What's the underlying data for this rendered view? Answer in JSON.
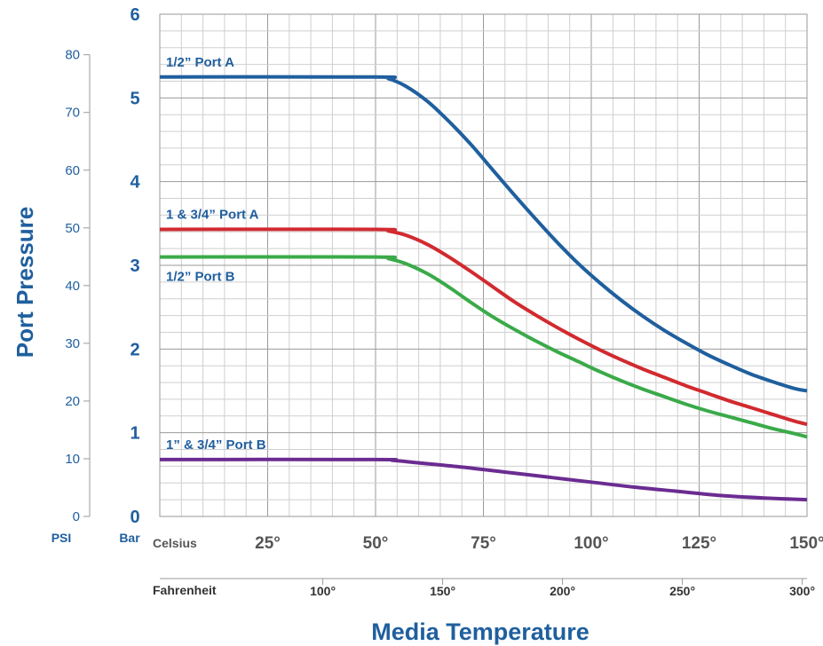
{
  "chart_data": {
    "type": "line",
    "ylabel": "Port Pressure",
    "xlabel": "Media Temperature",
    "units": {
      "bar": "Bar",
      "psi": "PSI",
      "celsius": "Celsius",
      "fahrenheit": "Fahrenheit"
    },
    "ylim_bar": [
      0,
      6
    ],
    "xlim_celsius": [
      0,
      150
    ],
    "grid": true,
    "bar_ticks": [
      "0",
      "1",
      "2",
      "3",
      "4",
      "5",
      "6"
    ],
    "psi_ticks": [
      {
        "label": "0",
        "psi": 0
      },
      {
        "label": "10",
        "psi": 10
      },
      {
        "label": "20",
        "psi": 20
      },
      {
        "label": "30",
        "psi": 30
      },
      {
        "label": "40",
        "psi": 40
      },
      {
        "label": "50",
        "psi": 50
      },
      {
        "label": "60",
        "psi": 60
      },
      {
        "label": "70",
        "psi": 70
      },
      {
        "label": "80",
        "psi": 80
      }
    ],
    "celsius_ticks": [
      {
        "label": "25°",
        "c": 25
      },
      {
        "label": "50°",
        "c": 50
      },
      {
        "label": "75°",
        "c": 75
      },
      {
        "label": "100°",
        "c": 100
      },
      {
        "label": "125°",
        "c": 125
      },
      {
        "label": "150°",
        "c": 150
      }
    ],
    "fahrenheit_ticks": [
      {
        "label": "100°",
        "f": 100
      },
      {
        "label": "150°",
        "f": 150
      },
      {
        "label": "200°",
        "f": 200
      },
      {
        "label": "250°",
        "f": 250
      },
      {
        "label": "300°",
        "f": 300
      }
    ],
    "series": [
      {
        "name": "1/2” Port A",
        "color": "#1f5f9e",
        "x": [
          0,
          50,
          53,
          57,
          62,
          67,
          72,
          77,
          82,
          87,
          92,
          97,
          102,
          107,
          112,
          117,
          122,
          127,
          132,
          137,
          142,
          147,
          150
        ],
        "y": [
          5.25,
          5.25,
          5.23,
          5.14,
          4.96,
          4.72,
          4.45,
          4.15,
          3.85,
          3.56,
          3.28,
          3.02,
          2.79,
          2.58,
          2.39,
          2.22,
          2.07,
          1.93,
          1.81,
          1.7,
          1.61,
          1.53,
          1.5
        ]
      },
      {
        "name": "1 & 3/4” Port A",
        "color": "#d12a2f",
        "x": [
          0,
          50,
          53,
          57,
          62,
          67,
          72,
          77,
          82,
          87,
          92,
          97,
          102,
          107,
          112,
          117,
          122,
          127,
          132,
          137,
          142,
          147,
          150
        ],
        "y": [
          3.43,
          3.43,
          3.41,
          3.36,
          3.25,
          3.1,
          2.93,
          2.75,
          2.57,
          2.41,
          2.26,
          2.12,
          1.99,
          1.87,
          1.76,
          1.66,
          1.56,
          1.47,
          1.38,
          1.3,
          1.22,
          1.14,
          1.1
        ]
      },
      {
        "name": "1/2” Port B",
        "color": "#3aaa49",
        "x": [
          0,
          50,
          53,
          57,
          62,
          67,
          72,
          77,
          82,
          87,
          92,
          97,
          102,
          107,
          112,
          117,
          122,
          127,
          132,
          137,
          142,
          147,
          150
        ],
        "y": [
          3.1,
          3.1,
          3.08,
          3.02,
          2.9,
          2.74,
          2.56,
          2.39,
          2.24,
          2.1,
          1.97,
          1.85,
          1.73,
          1.62,
          1.52,
          1.43,
          1.34,
          1.26,
          1.19,
          1.12,
          1.05,
          0.99,
          0.95
        ]
      },
      {
        "name": "1” & 3/4” Port B",
        "color": "#6b2c91",
        "x": [
          0,
          50,
          54,
          60,
          70,
          80,
          90,
          100,
          110,
          120,
          130,
          140,
          150
        ],
        "y": [
          0.68,
          0.68,
          0.67,
          0.64,
          0.59,
          0.53,
          0.47,
          0.41,
          0.35,
          0.3,
          0.25,
          0.22,
          0.2
        ]
      }
    ]
  }
}
